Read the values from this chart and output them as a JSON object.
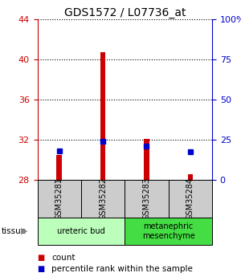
{
  "title": "GDS1572 / L07736_at",
  "samples": [
    "GSM35281",
    "GSM35282",
    "GSM35283",
    "GSM35284"
  ],
  "count_values": [
    30.5,
    40.7,
    32.1,
    28.6
  ],
  "percentile_values": [
    30.9,
    31.85,
    31.35,
    30.8
  ],
  "count_base": 28,
  "ylim_left": [
    28,
    44
  ],
  "ylim_right": [
    0,
    100
  ],
  "yticks_left": [
    28,
    32,
    36,
    40,
    44
  ],
  "yticks_right": [
    0,
    25,
    50,
    75,
    100
  ],
  "ytick_labels_right": [
    "0",
    "25",
    "50",
    "75",
    "100%"
  ],
  "tissue_groups": [
    {
      "label": "ureteric bud",
      "cols": [
        0,
        1
      ],
      "color": "#bbffbb"
    },
    {
      "label": "metanephric\nmesenchyme",
      "cols": [
        2,
        3
      ],
      "color": "#44dd44"
    }
  ],
  "bar_color": "#cc0000",
  "dot_color": "#0000cc",
  "sample_box_color": "#cccccc",
  "left_axis_color": "#cc0000",
  "right_axis_color": "#0000cc",
  "bar_width": 0.12,
  "dot_size": 28,
  "count_bar_bottom": 28,
  "fig_width": 3.0,
  "fig_height": 3.45,
  "dpi": 100
}
